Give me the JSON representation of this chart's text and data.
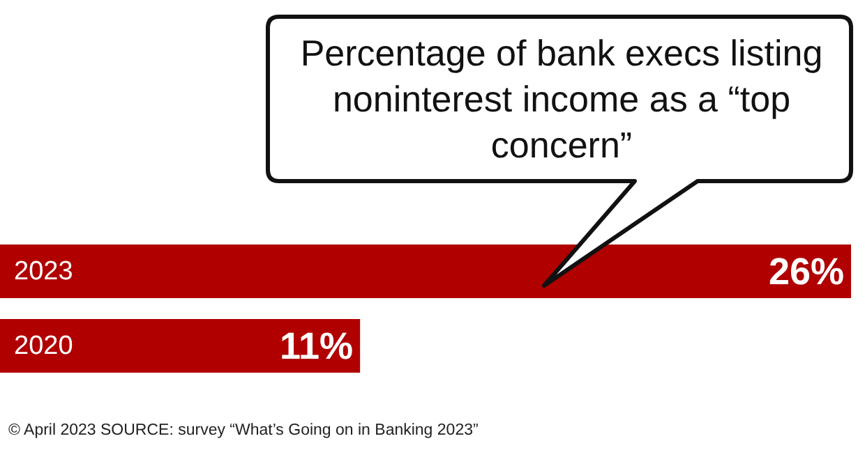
{
  "chart_data": {
    "type": "bar",
    "orientation": "horizontal",
    "title": "Percentage of bank execs listing noninterest income as a “top concern”",
    "categories": [
      "2023",
      "2020"
    ],
    "values": [
      26,
      11
    ],
    "value_labels": [
      "26%",
      "11%"
    ],
    "color": "#b00000",
    "annotations": [
      "© April 2023 SOURCE: survey “What’s Going on in Banking 2023”"
    ]
  }
}
